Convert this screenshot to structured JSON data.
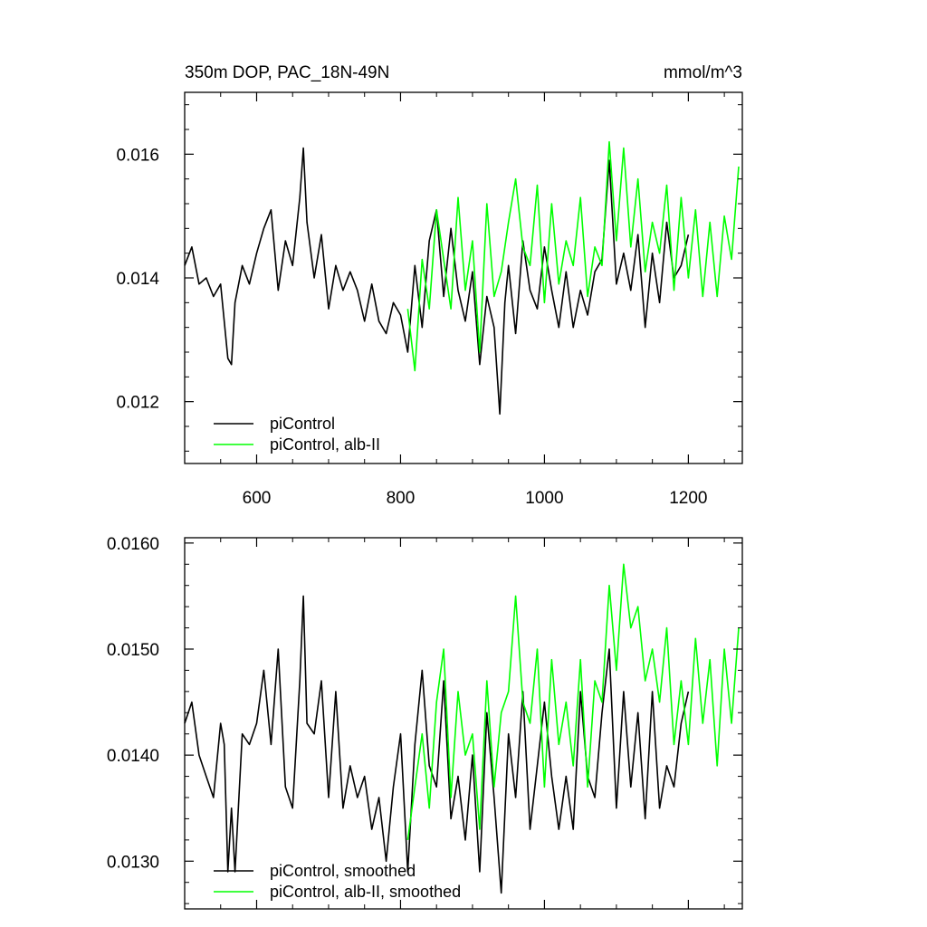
{
  "chart_data": [
    {
      "type": "line",
      "title": "350m DOP, PAC_18N-49N",
      "units": "mmol/m^3",
      "xlabel": "",
      "ylabel": "",
      "xlim": [
        500,
        1275
      ],
      "ylim": [
        0.011,
        0.017
      ],
      "xticks": [
        600,
        800,
        1000,
        1200
      ],
      "xtick_labels": [
        "600",
        "800",
        "1000",
        "1200"
      ],
      "yticks": [
        0.012,
        0.014,
        0.016
      ],
      "ytick_labels": [
        "0.012",
        "0.014",
        "0.016"
      ],
      "grid": false,
      "legend_position": "bottom-left",
      "series": [
        {
          "name": "piControl",
          "color": "#000000",
          "x": [
            500,
            510,
            520,
            530,
            540,
            550,
            560,
            565,
            570,
            580,
            590,
            600,
            610,
            620,
            630,
            640,
            650,
            660,
            665,
            670,
            680,
            690,
            700,
            710,
            720,
            730,
            740,
            750,
            760,
            770,
            780,
            790,
            800,
            810,
            820,
            830,
            840,
            850,
            860,
            870,
            880,
            890,
            900,
            910,
            920,
            930,
            938,
            945,
            950,
            960,
            970,
            980,
            990,
            1000,
            1010,
            1020,
            1030,
            1040,
            1050,
            1060,
            1070,
            1080,
            1090,
            1100,
            1110,
            1120,
            1130,
            1140,
            1150,
            1160,
            1170,
            1180,
            1190,
            1200
          ],
          "y": [
            0.0142,
            0.0145,
            0.0139,
            0.014,
            0.0137,
            0.0139,
            0.0127,
            0.0126,
            0.0136,
            0.0142,
            0.0139,
            0.0144,
            0.0148,
            0.0151,
            0.0138,
            0.0146,
            0.0142,
            0.0153,
            0.0161,
            0.0149,
            0.014,
            0.0147,
            0.0135,
            0.0142,
            0.0138,
            0.0141,
            0.0138,
            0.0133,
            0.0139,
            0.0133,
            0.0131,
            0.0136,
            0.0134,
            0.0128,
            0.0142,
            0.0132,
            0.0146,
            0.0151,
            0.0137,
            0.0148,
            0.0138,
            0.0133,
            0.0141,
            0.0126,
            0.0137,
            0.0132,
            0.0118,
            0.0136,
            0.0142,
            0.0131,
            0.0146,
            0.0138,
            0.0135,
            0.0145,
            0.0138,
            0.0132,
            0.0141,
            0.0132,
            0.0138,
            0.0134,
            0.0141,
            0.0143,
            0.0159,
            0.0139,
            0.0144,
            0.0138,
            0.0147,
            0.0132,
            0.0144,
            0.0136,
            0.0149,
            0.014,
            0.0142,
            0.0147
          ]
        },
        {
          "name": "piControl, alb-II",
          "color": "#00ff00",
          "x": [
            810,
            820,
            830,
            840,
            850,
            860,
            870,
            880,
            890,
            900,
            910,
            920,
            930,
            940,
            950,
            960,
            970,
            980,
            990,
            1000,
            1010,
            1020,
            1030,
            1040,
            1050,
            1060,
            1070,
            1080,
            1090,
            1100,
            1110,
            1120,
            1130,
            1140,
            1150,
            1160,
            1170,
            1180,
            1190,
            1200,
            1210,
            1220,
            1230,
            1240,
            1250,
            1260,
            1270
          ],
          "y": [
            0.0135,
            0.0125,
            0.0143,
            0.0135,
            0.0151,
            0.0143,
            0.0135,
            0.0153,
            0.0138,
            0.0146,
            0.0128,
            0.0152,
            0.0137,
            0.0141,
            0.0149,
            0.0156,
            0.0145,
            0.0142,
            0.0155,
            0.0136,
            0.0152,
            0.0139,
            0.0146,
            0.0142,
            0.0153,
            0.0137,
            0.0145,
            0.0142,
            0.0162,
            0.0146,
            0.0161,
            0.0145,
            0.0156,
            0.0141,
            0.0149,
            0.0144,
            0.0155,
            0.0138,
            0.0153,
            0.014,
            0.0151,
            0.0137,
            0.0149,
            0.0137,
            0.015,
            0.0143,
            0.0158
          ]
        }
      ]
    },
    {
      "type": "line",
      "title": "",
      "xlabel": "",
      "ylabel": "",
      "xlim": [
        500,
        1275
      ],
      "ylim": [
        0.01255,
        0.01605
      ],
      "xticks": [
        600,
        800,
        1000,
        1200
      ],
      "xtick_labels": [],
      "yticks": [
        0.013,
        0.014,
        0.015,
        0.016
      ],
      "ytick_labels": [
        "0.0130",
        "0.0140",
        "0.0150",
        "0.0160"
      ],
      "grid": false,
      "legend_position": "bottom-left",
      "series": [
        {
          "name": "piControl, smoothed",
          "color": "#000000",
          "x": [
            500,
            510,
            520,
            530,
            540,
            550,
            555,
            560,
            565,
            570,
            580,
            590,
            600,
            610,
            620,
            630,
            640,
            650,
            660,
            665,
            670,
            680,
            690,
            700,
            710,
            720,
            730,
            740,
            750,
            760,
            770,
            780,
            790,
            800,
            810,
            820,
            830,
            840,
            850,
            860,
            870,
            880,
            890,
            900,
            910,
            920,
            930,
            940,
            950,
            960,
            970,
            980,
            990,
            1000,
            1010,
            1020,
            1030,
            1040,
            1050,
            1060,
            1070,
            1080,
            1090,
            1100,
            1110,
            1120,
            1130,
            1140,
            1150,
            1160,
            1170,
            1180,
            1190,
            1200
          ],
          "y": [
            0.0143,
            0.0145,
            0.014,
            0.0138,
            0.0136,
            0.0143,
            0.0141,
            0.0129,
            0.0135,
            0.0129,
            0.0142,
            0.0141,
            0.0143,
            0.0148,
            0.0141,
            0.015,
            0.0137,
            0.0135,
            0.0147,
            0.0155,
            0.0143,
            0.0142,
            0.0147,
            0.0136,
            0.0146,
            0.0135,
            0.0139,
            0.0136,
            0.0138,
            0.0133,
            0.0136,
            0.013,
            0.0137,
            0.0142,
            0.0129,
            0.0141,
            0.0148,
            0.0139,
            0.0137,
            0.0147,
            0.0134,
            0.0138,
            0.0132,
            0.014,
            0.0129,
            0.0144,
            0.0136,
            0.0127,
            0.0142,
            0.0136,
            0.0146,
            0.0133,
            0.0139,
            0.0145,
            0.0138,
            0.0133,
            0.0138,
            0.0133,
            0.0146,
            0.0138,
            0.0136,
            0.0144,
            0.015,
            0.0135,
            0.0146,
            0.0137,
            0.0144,
            0.0134,
            0.0146,
            0.0135,
            0.0139,
            0.0137,
            0.0143,
            0.0146
          ]
        },
        {
          "name": "piControl, alb-II, smoothed",
          "color": "#00ff00",
          "x": [
            810,
            820,
            830,
            840,
            850,
            860,
            870,
            880,
            890,
            900,
            910,
            920,
            930,
            940,
            950,
            960,
            970,
            980,
            990,
            1000,
            1010,
            1020,
            1030,
            1040,
            1050,
            1060,
            1070,
            1080,
            1090,
            1100,
            1110,
            1120,
            1130,
            1140,
            1150,
            1160,
            1170,
            1180,
            1190,
            1200,
            1210,
            1220,
            1230,
            1240,
            1250,
            1260,
            1270
          ],
          "y": [
            0.0132,
            0.0137,
            0.0142,
            0.0135,
            0.0145,
            0.015,
            0.0136,
            0.0146,
            0.014,
            0.0142,
            0.0133,
            0.0147,
            0.0137,
            0.0144,
            0.0146,
            0.0155,
            0.0145,
            0.0143,
            0.015,
            0.0137,
            0.0149,
            0.0141,
            0.0145,
            0.0139,
            0.0149,
            0.0137,
            0.0147,
            0.0145,
            0.0156,
            0.0148,
            0.0158,
            0.0152,
            0.0154,
            0.0147,
            0.015,
            0.0145,
            0.0152,
            0.0141,
            0.0147,
            0.0141,
            0.0151,
            0.0143,
            0.0149,
            0.0139,
            0.015,
            0.0143,
            0.0152
          ]
        }
      ]
    }
  ]
}
